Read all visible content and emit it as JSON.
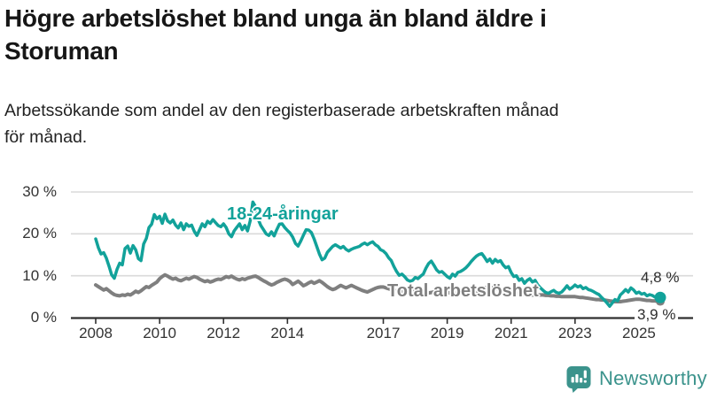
{
  "header": {
    "title": "Högre arbetslöshet bland unga än bland äldre i\nStoruman",
    "subtitle": "Arbetssökande som andel av den registerbaserade arbetskraften månad\nför månad."
  },
  "chart_data": {
    "type": "line",
    "title": "Högre arbetslöshet bland unga än bland äldre i Storuman",
    "subtitle": "Arbetssökande som andel av den registerbaserade arbetskraften månad för månad.",
    "unit": "%",
    "frequency": "monthly",
    "x_start": "2008-01",
    "x_end": "2025-09",
    "ylim": [
      0,
      30
    ],
    "yticks": [
      0,
      10,
      20,
      30
    ],
    "ytick_labels": [
      "0 %",
      "10 %",
      "20 %",
      "30 %"
    ],
    "xticks": [
      2008,
      2010,
      2012,
      2014,
      2017,
      2019,
      2021,
      2023,
      2025
    ],
    "grid": "horizontal",
    "legend_position": "inline-labels",
    "series": [
      {
        "name": "18-24-åringar",
        "color": "#12a29a",
        "end_label": "4,8 %",
        "end_value": 4.8,
        "values": [
          18.8,
          16.7,
          15.2,
          15.5,
          14.2,
          12.3,
          10.2,
          9.4,
          11.5,
          13.0,
          12.6,
          16.5,
          17.1,
          15.4,
          17.2,
          16.2,
          14.1,
          13.6,
          17.6,
          18.9,
          21.5,
          22.3,
          24.6,
          23.6,
          24.2,
          22.5,
          24.7,
          23.1,
          22.6,
          23.3,
          22.1,
          21.4,
          22.6,
          21.0,
          22.4,
          21.8,
          22.1,
          20.6,
          19.6,
          21.0,
          22.4,
          21.7,
          23.0,
          22.5,
          23.4,
          22.7,
          22.0,
          21.7,
          22.4,
          21.5,
          20.0,
          19.3,
          20.7,
          21.6,
          22.4,
          21.0,
          22.0,
          20.7,
          23.1,
          27.6,
          26.5,
          23.5,
          22.0,
          21.0,
          20.0,
          19.6,
          20.5,
          19.5,
          21.0,
          22.3,
          22.4,
          21.5,
          20.8,
          20.2,
          19.2,
          17.7,
          17.1,
          18.3,
          19.7,
          21.0,
          20.9,
          20.3,
          18.8,
          17.0,
          15.2,
          13.8,
          14.2,
          15.6,
          16.3,
          17.0,
          17.4,
          17.0,
          16.6,
          17.0,
          16.3,
          15.9,
          16.3,
          16.6,
          16.8,
          17.0,
          17.5,
          17.8,
          17.4,
          17.8,
          18.1,
          17.4,
          17.0,
          16.2,
          15.9,
          15.3,
          14.3,
          13.6,
          12.2,
          11.0,
          10.1,
          10.4,
          9.8,
          9.0,
          8.7,
          8.9,
          9.6,
          9.3,
          9.9,
          10.4,
          11.8,
          12.9,
          13.5,
          12.5,
          11.4,
          10.8,
          11.0,
          10.4,
          9.8,
          9.4,
          10.4,
          9.9,
          10.8,
          11.0,
          11.4,
          11.9,
          12.6,
          13.4,
          14.1,
          14.7,
          15.1,
          15.3,
          14.4,
          13.4,
          14.0,
          13.0,
          13.9,
          13.3,
          13.6,
          12.6,
          11.9,
          12.2,
          10.8,
          9.8,
          10.0,
          8.9,
          9.3,
          8.2,
          8.9,
          9.3,
          8.5,
          8.9,
          7.8,
          7.1,
          6.5,
          6.0,
          5.8,
          6.2,
          6.5,
          6.0,
          5.8,
          6.1,
          6.8,
          7.6,
          6.8,
          7.2,
          7.8,
          7.3,
          7.6,
          6.9,
          7.2,
          6.7,
          6.5,
          6.2,
          5.8,
          5.5,
          4.8,
          4.2,
          3.5,
          2.7,
          3.5,
          4.3,
          4.0,
          5.4,
          6.0,
          6.7,
          6.1,
          7.1,
          6.6,
          5.8,
          6.1,
          5.6,
          5.8,
          5.2,
          5.5,
          5.3,
          4.9,
          5.1,
          4.8
        ]
      },
      {
        "name": "Total arbetslöshet",
        "color": "#7f7f7f",
        "end_label": "3,9 %",
        "end_value": 3.9,
        "values": [
          7.8,
          7.4,
          7.0,
          6.6,
          6.9,
          6.4,
          5.9,
          5.5,
          5.3,
          5.2,
          5.4,
          5.3,
          5.6,
          5.4,
          5.8,
          6.3,
          6.0,
          6.4,
          6.9,
          7.4,
          7.2,
          7.7,
          8.1,
          8.5,
          9.3,
          9.8,
          10.2,
          9.9,
          9.5,
          9.2,
          9.4,
          9.0,
          8.8,
          9.1,
          9.4,
          9.2,
          9.5,
          9.8,
          9.6,
          9.2,
          8.9,
          8.6,
          8.8,
          8.5,
          8.7,
          9.0,
          9.2,
          9.1,
          9.4,
          9.8,
          9.6,
          9.9,
          9.5,
          9.2,
          9.0,
          9.3,
          9.1,
          9.4,
          9.6,
          9.8,
          9.9,
          9.6,
          9.2,
          8.8,
          8.5,
          8.1,
          7.8,
          8.0,
          8.4,
          8.7,
          9.0,
          9.2,
          9.0,
          8.6,
          7.9,
          8.3,
          8.7,
          8.2,
          7.6,
          7.9,
          8.3,
          8.6,
          8.2,
          8.5,
          8.8,
          8.4,
          7.9,
          7.4,
          7.0,
          6.7,
          6.9,
          7.3,
          7.7,
          7.4,
          7.1,
          7.4,
          7.7,
          7.4,
          7.1,
          6.8,
          6.5,
          6.3,
          6.1,
          6.4,
          6.7,
          7.0,
          7.2,
          7.3,
          7.3,
          7.1,
          6.9,
          6.7,
          6.5,
          6.4,
          6.3,
          6.2,
          6.3,
          6.4,
          6.3,
          6.3,
          6.2,
          6.1,
          6.0,
          5.9,
          5.8,
          5.9,
          6.0,
          6.1,
          6.0,
          6.1,
          6.1,
          6.0,
          6.0,
          5.9,
          5.8,
          5.8,
          5.7,
          5.8,
          5.9,
          6.0,
          6.0,
          6.1,
          6.1,
          6.2,
          6.5,
          6.7,
          7.0,
          7.3,
          7.2,
          7.1,
          7.0,
          6.9,
          6.8,
          6.6,
          6.4,
          6.2,
          6.0,
          5.9,
          5.8,
          5.7,
          5.6,
          5.5,
          5.5,
          5.4,
          5.4,
          5.4,
          5.4,
          5.4,
          5.4,
          5.3,
          5.3,
          5.2,
          5.2,
          5.1,
          5.1,
          5.0,
          5.0,
          5.0,
          5.0,
          5.0,
          5.0,
          4.9,
          4.8,
          4.8,
          4.7,
          4.6,
          4.5,
          4.4,
          4.3,
          4.3,
          4.2,
          4.2,
          4.1,
          4.0,
          3.9,
          3.8,
          3.8,
          3.8,
          3.9,
          4.0,
          4.1,
          4.2,
          4.3,
          4.4,
          4.4,
          4.3,
          4.2,
          4.1,
          4.1,
          4.0,
          4.0,
          3.9,
          3.9
        ]
      }
    ]
  },
  "colors": {
    "accent_teal": "#12a29a",
    "line_gray": "#7f7f7f",
    "axis": "#333333",
    "grid": "#dadada",
    "brand_teal": "#3b938c",
    "background": "#ffffff"
  },
  "footer": {
    "brand": "Newsworthy"
  }
}
